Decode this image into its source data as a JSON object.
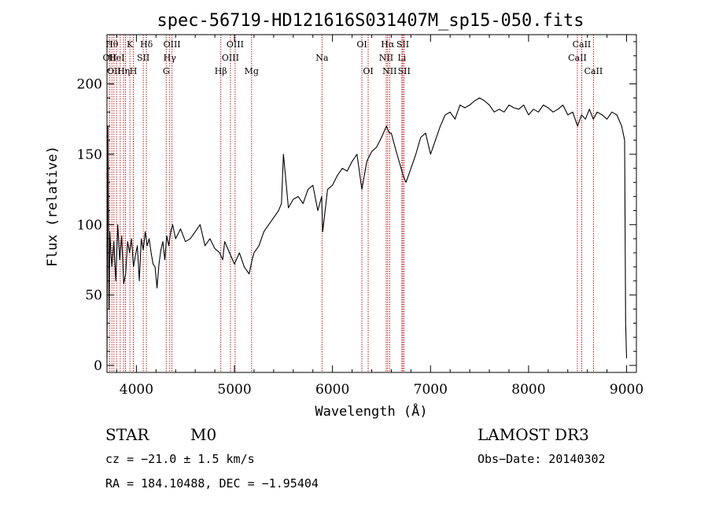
{
  "chart_data": {
    "type": "line",
    "title": "spec-56719-HD121616S031407M_sp15-050.fits",
    "xlabel": "Wavelength (Å)",
    "ylabel": "Flux (relative)",
    "xlim": [
      3700,
      9100
    ],
    "ylim": [
      -5,
      235
    ],
    "xticks": [
      4000,
      5000,
      6000,
      7000,
      8000,
      9000
    ],
    "yticks": [
      0,
      50,
      100,
      150,
      200
    ],
    "line_color": "#000000",
    "marker_color": "#b00000",
    "series": [
      {
        "x": [
          3700,
          3710,
          3720,
          3730,
          3740,
          3750,
          3770,
          3790,
          3810,
          3830,
          3850,
          3870,
          3890,
          3910,
          3930,
          3950,
          3970,
          3990,
          4010,
          4030,
          4050,
          4070,
          4090,
          4110,
          4130,
          4150,
          4170,
          4190,
          4210,
          4230,
          4250,
          4270,
          4290,
          4310,
          4330,
          4350,
          4370,
          4400,
          4450,
          4500,
          4550,
          4600,
          4650,
          4700,
          4750,
          4800,
          4850,
          4880,
          4900,
          4950,
          5000,
          5050,
          5100,
          5150,
          5180,
          5200,
          5250,
          5300,
          5350,
          5400,
          5450,
          5480,
          5500,
          5550,
          5600,
          5650,
          5700,
          5750,
          5800,
          5850,
          5890,
          5900,
          5950,
          6000,
          6050,
          6100,
          6150,
          6200,
          6250,
          6300,
          6350,
          6400,
          6450,
          6500,
          6550,
          6580,
          6600,
          6650,
          6700,
          6720,
          6750,
          6800,
          6850,
          6900,
          6950,
          7000,
          7050,
          7100,
          7150,
          7200,
          7250,
          7300,
          7350,
          7400,
          7450,
          7500,
          7550,
          7600,
          7650,
          7700,
          7750,
          7800,
          7850,
          7900,
          7950,
          8000,
          8050,
          8100,
          8150,
          8200,
          8250,
          8300,
          8350,
          8400,
          8450,
          8500,
          8540,
          8580,
          8620,
          8660,
          8700,
          8750,
          8800,
          8850,
          8900,
          8950,
          8980,
          8990,
          9000
        ],
        "y": [
          5,
          170,
          40,
          95,
          80,
          70,
          88,
          60,
          100,
          75,
          92,
          58,
          65,
          88,
          80,
          90,
          70,
          78,
          85,
          60,
          90,
          82,
          95,
          85,
          90,
          80,
          72,
          70,
          55,
          72,
          82,
          88,
          75,
          92,
          85,
          95,
          100,
          90,
          97,
          88,
          90,
          95,
          100,
          85,
          90,
          83,
          80,
          75,
          88,
          80,
          72,
          80,
          70,
          65,
          75,
          80,
          85,
          95,
          100,
          105,
          110,
          115,
          150,
          112,
          118,
          120,
          115,
          125,
          128,
          110,
          120,
          95,
          125,
          128,
          135,
          140,
          138,
          145,
          150,
          125,
          145,
          152,
          155,
          162,
          170,
          165,
          165,
          152,
          140,
          135,
          130,
          140,
          150,
          162,
          165,
          150,
          160,
          170,
          178,
          180,
          175,
          185,
          183,
          185,
          188,
          190,
          188,
          185,
          180,
          182,
          180,
          185,
          183,
          182,
          185,
          178,
          182,
          180,
          185,
          183,
          180,
          182,
          185,
          178,
          180,
          170,
          178,
          175,
          182,
          175,
          180,
          178,
          175,
          180,
          178,
          170,
          160,
          30,
          5
        ]
      }
    ],
    "markers": [
      {
        "wl": 3727,
        "row": 1,
        "label": "OII"
      },
      {
        "wl": 3750,
        "row": 0,
        "label": "Hθ"
      },
      {
        "wl": 3771,
        "row": 2,
        "label": "OII"
      },
      {
        "wl": 3798,
        "row": 1,
        "label": "HeI"
      },
      {
        "wl": 3835,
        "row": 0,
        "label": ""
      },
      {
        "wl": 3869,
        "row": 2,
        "label": "Hη"
      },
      {
        "wl": 3889,
        "row": 1,
        "label": ""
      },
      {
        "wl": 3934,
        "row": 0,
        "label": "K"
      },
      {
        "wl": 3969,
        "row": 2,
        "label": "H"
      },
      {
        "wl": 4070,
        "row": 1,
        "label": "SII"
      },
      {
        "wl": 4102,
        "row": 0,
        "label": "Hδ"
      },
      {
        "wl": 4304,
        "row": 2,
        "label": "G"
      },
      {
        "wl": 4340,
        "row": 1,
        "label": "Hγ"
      },
      {
        "wl": 4363,
        "row": 0,
        "label": "OIII"
      },
      {
        "wl": 4861,
        "row": 2,
        "label": "Hβ"
      },
      {
        "wl": 4959,
        "row": 1,
        "label": "OIII"
      },
      {
        "wl": 5007,
        "row": 0,
        "label": "OIII"
      },
      {
        "wl": 5175,
        "row": 2,
        "label": "Mg"
      },
      {
        "wl": 5893,
        "row": 1,
        "label": "Na"
      },
      {
        "wl": 6300,
        "row": 0,
        "label": "OI"
      },
      {
        "wl": 6364,
        "row": 2,
        "label": "OI"
      },
      {
        "wl": 6548,
        "row": 1,
        "label": "NII"
      },
      {
        "wl": 6563,
        "row": 0,
        "label": "Hα"
      },
      {
        "wl": 6583,
        "row": 2,
        "label": "NII"
      },
      {
        "wl": 6708,
        "row": 1,
        "label": "Li"
      },
      {
        "wl": 6717,
        "row": 0,
        "label": "SII"
      },
      {
        "wl": 6731,
        "row": 2,
        "label": "SII"
      },
      {
        "wl": 8498,
        "row": 1,
        "label": "CaII"
      },
      {
        "wl": 8542,
        "row": 0,
        "label": "CaII"
      },
      {
        "wl": 8662,
        "row": 2,
        "label": "CaII"
      }
    ]
  },
  "info": {
    "class": "STAR",
    "subclass": "M0",
    "survey": "LAMOST DR3",
    "cz": "cz = −21.0 ± 1.5 km/s",
    "obs_date": "Obs−Date: 20140302",
    "radec": "RA = 184.10488, DEC =  −1.95404"
  }
}
